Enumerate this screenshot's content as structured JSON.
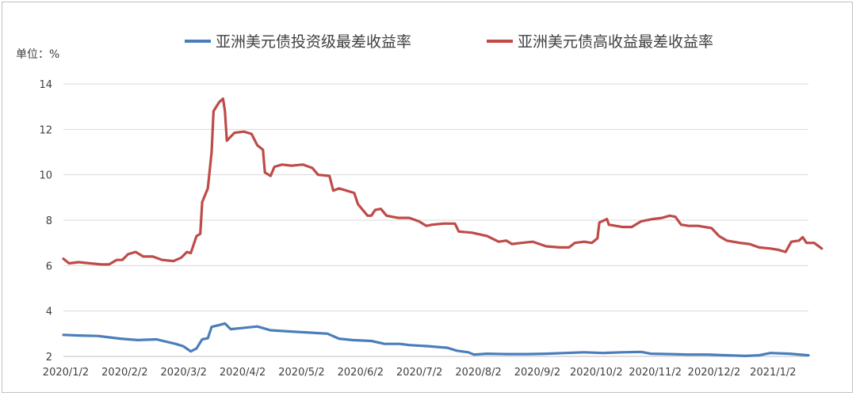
{
  "chart_data": {
    "type": "line",
    "unit_label": "单位：%",
    "x_tick_labels": [
      "2020/1/2",
      "2020/2/2",
      "2020/3/2",
      "2020/4/2",
      "2020/5/2",
      "2020/6/2",
      "2020/7/2",
      "2020/8/2",
      "2020/9/2",
      "2020/10/2",
      "2020/11/2",
      "2020/12/2",
      "2021/1/2"
    ],
    "y_ticks": [
      2,
      4,
      6,
      8,
      10,
      12,
      14
    ],
    "ylim": [
      2,
      14
    ],
    "x_start": "2020-01-02",
    "x_end": "2021-01-28",
    "grid": "horizontal",
    "legend_position": "top",
    "series": [
      {
        "name": "亚洲美元债投资级最差收益率",
        "color": "#4a7ebb",
        "points": [
          [
            "2020-01-02",
            2.95
          ],
          [
            "2020-01-10",
            2.92
          ],
          [
            "2020-01-20",
            2.9
          ],
          [
            "2020-02-01",
            2.78
          ],
          [
            "2020-02-10",
            2.72
          ],
          [
            "2020-02-20",
            2.75
          ],
          [
            "2020-03-01",
            2.55
          ],
          [
            "2020-03-05",
            2.45
          ],
          [
            "2020-03-09",
            2.22
          ],
          [
            "2020-03-12",
            2.35
          ],
          [
            "2020-03-15",
            2.75
          ],
          [
            "2020-03-18",
            2.8
          ],
          [
            "2020-03-20",
            3.3
          ],
          [
            "2020-03-24",
            3.38
          ],
          [
            "2020-03-27",
            3.45
          ],
          [
            "2020-03-30",
            3.2
          ],
          [
            "2020-04-05",
            3.25
          ],
          [
            "2020-04-13",
            3.32
          ],
          [
            "2020-04-20",
            3.15
          ],
          [
            "2020-04-30",
            3.1
          ],
          [
            "2020-05-10",
            3.05
          ],
          [
            "2020-05-20",
            3.0
          ],
          [
            "2020-05-26",
            2.78
          ],
          [
            "2020-06-02",
            2.72
          ],
          [
            "2020-06-12",
            2.68
          ],
          [
            "2020-06-19",
            2.55
          ],
          [
            "2020-06-27",
            2.55
          ],
          [
            "2020-07-02",
            2.5
          ],
          [
            "2020-07-12",
            2.45
          ],
          [
            "2020-07-22",
            2.38
          ],
          [
            "2020-07-27",
            2.25
          ],
          [
            "2020-08-02",
            2.18
          ],
          [
            "2020-08-05",
            2.08
          ],
          [
            "2020-08-12",
            2.12
          ],
          [
            "2020-08-22",
            2.1
          ],
          [
            "2020-09-02",
            2.1
          ],
          [
            "2020-09-12",
            2.12
          ],
          [
            "2020-09-22",
            2.15
          ],
          [
            "2020-10-02",
            2.18
          ],
          [
            "2020-10-12",
            2.15
          ],
          [
            "2020-10-22",
            2.18
          ],
          [
            "2020-11-01",
            2.2
          ],
          [
            "2020-11-06",
            2.12
          ],
          [
            "2020-11-16",
            2.1
          ],
          [
            "2020-11-26",
            2.08
          ],
          [
            "2020-12-06",
            2.08
          ],
          [
            "2020-12-16",
            2.05
          ],
          [
            "2020-12-26",
            2.02
          ],
          [
            "2021-01-02",
            2.05
          ],
          [
            "2021-01-08",
            2.15
          ],
          [
            "2021-01-18",
            2.12
          ],
          [
            "2021-01-28",
            2.05
          ]
        ]
      },
      {
        "name": "亚洲美元债高收益最差收益率",
        "color": "#be4b48",
        "points": [
          [
            "2020-01-02",
            6.3
          ],
          [
            "2020-01-05",
            6.1
          ],
          [
            "2020-01-10",
            6.15
          ],
          [
            "2020-01-16",
            6.1
          ],
          [
            "2020-01-22",
            6.05
          ],
          [
            "2020-01-26",
            6.05
          ],
          [
            "2020-01-30",
            6.25
          ],
          [
            "2020-02-02",
            6.25
          ],
          [
            "2020-02-05",
            6.5
          ],
          [
            "2020-02-09",
            6.6
          ],
          [
            "2020-02-13",
            6.4
          ],
          [
            "2020-02-18",
            6.4
          ],
          [
            "2020-02-23",
            6.25
          ],
          [
            "2020-02-29",
            6.2
          ],
          [
            "2020-03-04",
            6.35
          ],
          [
            "2020-03-07",
            6.6
          ],
          [
            "2020-03-09",
            6.55
          ],
          [
            "2020-03-12",
            7.3
          ],
          [
            "2020-03-14",
            7.4
          ],
          [
            "2020-03-15",
            8.8
          ],
          [
            "2020-03-18",
            9.4
          ],
          [
            "2020-03-20",
            11.0
          ],
          [
            "2020-03-21",
            12.8
          ],
          [
            "2020-03-24",
            13.2
          ],
          [
            "2020-03-26",
            13.35
          ],
          [
            "2020-03-27",
            12.8
          ],
          [
            "2020-03-28",
            11.5
          ],
          [
            "2020-04-01",
            11.85
          ],
          [
            "2020-04-06",
            11.9
          ],
          [
            "2020-04-10",
            11.8
          ],
          [
            "2020-04-13",
            11.3
          ],
          [
            "2020-04-16",
            11.1
          ],
          [
            "2020-04-17",
            10.1
          ],
          [
            "2020-04-20",
            9.95
          ],
          [
            "2020-04-22",
            10.35
          ],
          [
            "2020-04-26",
            10.45
          ],
          [
            "2020-05-01",
            10.4
          ],
          [
            "2020-05-07",
            10.45
          ],
          [
            "2020-05-12",
            10.3
          ],
          [
            "2020-05-15",
            10.0
          ],
          [
            "2020-05-21",
            9.95
          ],
          [
            "2020-05-23",
            9.3
          ],
          [
            "2020-05-26",
            9.4
          ],
          [
            "2020-05-30",
            9.3
          ],
          [
            "2020-06-03",
            9.2
          ],
          [
            "2020-06-05",
            8.7
          ],
          [
            "2020-06-10",
            8.2
          ],
          [
            "2020-06-12",
            8.2
          ],
          [
            "2020-06-14",
            8.45
          ],
          [
            "2020-06-17",
            8.5
          ],
          [
            "2020-06-20",
            8.2
          ],
          [
            "2020-06-26",
            8.1
          ],
          [
            "2020-07-02",
            8.1
          ],
          [
            "2020-07-07",
            7.95
          ],
          [
            "2020-07-11",
            7.75
          ],
          [
            "2020-07-14",
            7.8
          ],
          [
            "2020-07-20",
            7.85
          ],
          [
            "2020-07-26",
            7.85
          ],
          [
            "2020-07-28",
            7.5
          ],
          [
            "2020-08-04",
            7.45
          ],
          [
            "2020-08-12",
            7.3
          ],
          [
            "2020-08-18",
            7.05
          ],
          [
            "2020-08-22",
            7.1
          ],
          [
            "2020-08-25",
            6.95
          ],
          [
            "2020-08-30",
            7.0
          ],
          [
            "2020-09-05",
            7.05
          ],
          [
            "2020-09-12",
            6.85
          ],
          [
            "2020-09-19",
            6.8
          ],
          [
            "2020-09-24",
            6.8
          ],
          [
            "2020-09-27",
            7.0
          ],
          [
            "2020-10-02",
            7.05
          ],
          [
            "2020-10-06",
            7.0
          ],
          [
            "2020-10-09",
            7.2
          ],
          [
            "2020-10-10",
            7.9
          ],
          [
            "2020-10-14",
            8.05
          ],
          [
            "2020-10-15",
            7.8
          ],
          [
            "2020-10-22",
            7.7
          ],
          [
            "2020-10-27",
            7.7
          ],
          [
            "2020-11-01",
            7.95
          ],
          [
            "2020-11-07",
            8.05
          ],
          [
            "2020-11-12",
            8.1
          ],
          [
            "2020-11-16",
            8.2
          ],
          [
            "2020-11-19",
            8.15
          ],
          [
            "2020-11-22",
            7.8
          ],
          [
            "2020-11-26",
            7.75
          ],
          [
            "2020-12-01",
            7.75
          ],
          [
            "2020-12-08",
            7.65
          ],
          [
            "2020-12-12",
            7.3
          ],
          [
            "2020-12-16",
            7.1
          ],
          [
            "2020-12-23",
            7.0
          ],
          [
            "2020-12-28",
            6.95
          ],
          [
            "2021-01-02",
            6.8
          ],
          [
            "2021-01-08",
            6.75
          ],
          [
            "2021-01-12",
            6.7
          ],
          [
            "2021-01-16",
            6.6
          ],
          [
            "2021-01-19",
            7.05
          ],
          [
            "2021-01-23",
            7.1
          ],
          [
            "2021-01-25",
            7.25
          ],
          [
            "2021-01-27",
            7.0
          ],
          [
            "2021-01-31",
            7.0
          ],
          [
            "2021-02-04",
            6.75
          ]
        ]
      }
    ]
  }
}
